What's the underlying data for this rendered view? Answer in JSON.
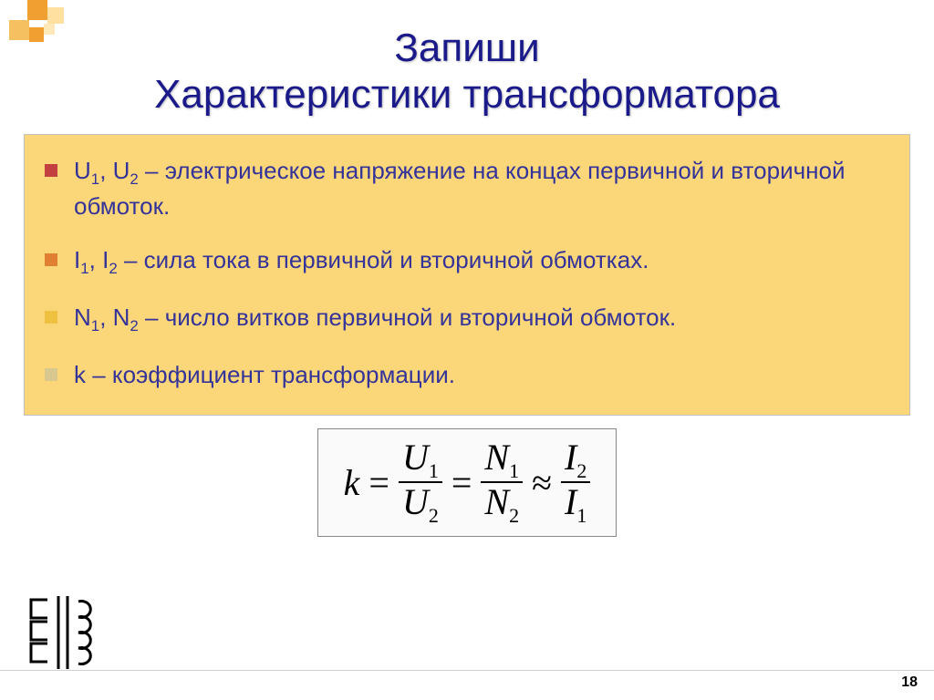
{
  "deco_colors": [
    "#f0a030",
    "#ffe0a0",
    "#f5c060",
    "#f0a030",
    "#ffe8b8"
  ],
  "title": {
    "line1": "Запиши",
    "line2": "Характеристики трансформатора",
    "color": "#1a1a8a",
    "fontsize": 44
  },
  "content_box": {
    "background": "#fcd77a",
    "text_color": "#333399",
    "fontsize": 26,
    "bullets": [
      {
        "marker_color": "#c44040",
        "html": "U<sub>1</sub>, U<sub>2</sub> – электрическое напряжение на концах первичной и вторичной обмоток."
      },
      {
        "marker_color": "#e08030",
        "html": "I<sub>1</sub>, I<sub>2</sub> – сила тока в первичной и вторичной обмотках."
      },
      {
        "marker_color": "#f0c040",
        "html": "N<sub>1</sub>, N<sub>2</sub> – число витков первичной и вторичной обмоток."
      },
      {
        "marker_color": "#d8c890",
        "html": "k – коэффициент трансформации."
      }
    ]
  },
  "formula": {
    "border_color": "#888888",
    "background": "#fafafa",
    "fontsize": 40,
    "lhs": "k",
    "terms": [
      {
        "op": "=",
        "num": "U",
        "num_sub": "1",
        "den": "U",
        "den_sub": "2"
      },
      {
        "op": "=",
        "num": "N",
        "num_sub": "1",
        "den": "N",
        "den_sub": "2"
      },
      {
        "op": "≈",
        "num": "I",
        "num_sub": "2",
        "den": "I",
        "den_sub": "1"
      }
    ]
  },
  "page_number": "18",
  "transformer_symbol": {
    "stroke": "#000000",
    "stroke_width": 3
  }
}
